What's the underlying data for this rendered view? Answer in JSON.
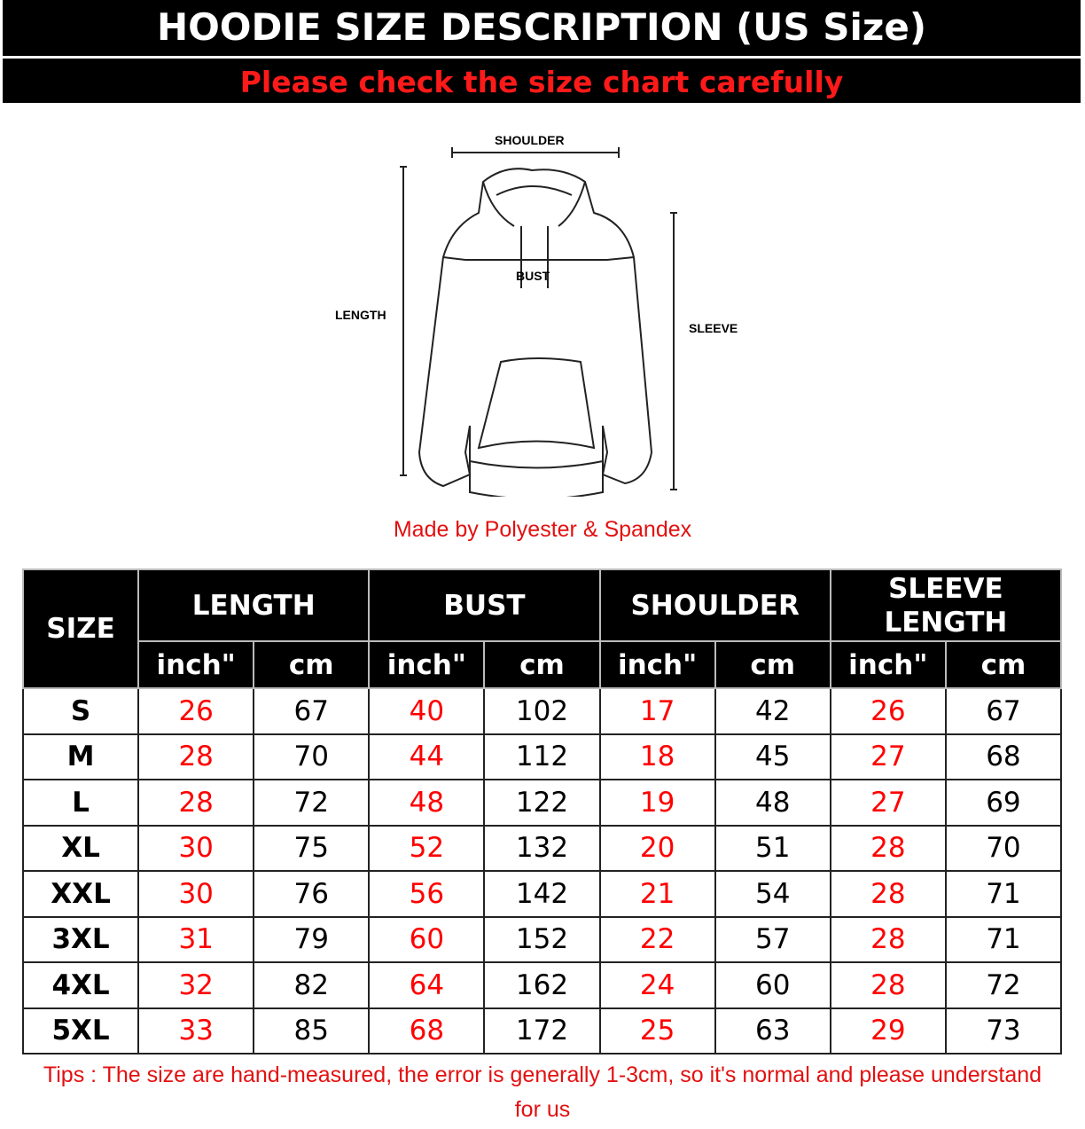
{
  "header": {
    "title": "HOODIE SIZE DESCRIPTION (US Size)",
    "subtitle": "Please check the size chart carefully"
  },
  "diagram": {
    "shoulder": "SHOULDER",
    "bust": "BUST",
    "length": "LENGTH",
    "sleeve": "SLEEVE"
  },
  "material": "Made by Polyester & Spandex",
  "table": {
    "size_header": "SIZE",
    "groups": [
      "LENGTH",
      "BUST",
      "SHOULDER",
      "SLEEVE LENGTH"
    ],
    "units": [
      "inch\"",
      "cm",
      "inch\"",
      "cm",
      "inch\"",
      "cm",
      "inch\"",
      "cm"
    ],
    "rows": [
      [
        "S",
        "26",
        "67",
        "40",
        "102",
        "17",
        "42",
        "26",
        "67"
      ],
      [
        "M",
        "28",
        "70",
        "44",
        "112",
        "18",
        "45",
        "27",
        "68"
      ],
      [
        "L",
        "28",
        "72",
        "48",
        "122",
        "19",
        "48",
        "27",
        "69"
      ],
      [
        "XL",
        "30",
        "75",
        "52",
        "132",
        "20",
        "51",
        "28",
        "70"
      ],
      [
        "XXL",
        "30",
        "76",
        "56",
        "142",
        "21",
        "54",
        "28",
        "71"
      ],
      [
        "3XL",
        "31",
        "79",
        "60",
        "152",
        "22",
        "57",
        "28",
        "71"
      ],
      [
        "4XL",
        "32",
        "82",
        "64",
        "162",
        "24",
        "60",
        "28",
        "72"
      ],
      [
        "5XL",
        "33",
        "85",
        "68",
        "172",
        "25",
        "63",
        "29",
        "73"
      ]
    ]
  },
  "tips": "Tips : The size are hand-measured, the error is generally 1-3cm, so it's normal and please understand for us",
  "colors": {
    "accent_red": "#ff0000",
    "header_bg": "#000000"
  }
}
